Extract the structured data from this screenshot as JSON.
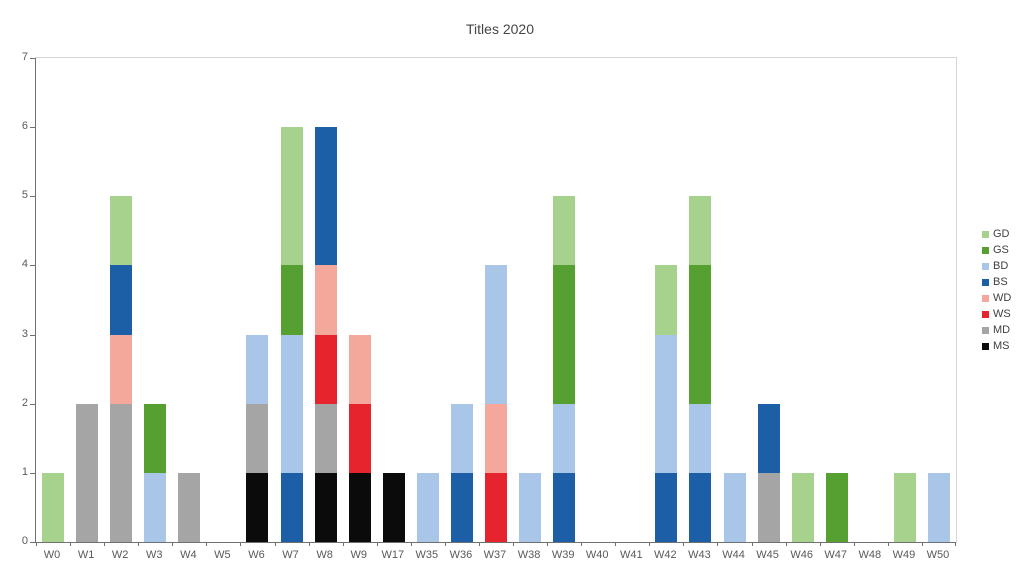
{
  "chart_data": {
    "type": "bar",
    "subtype": "stacked-vertical",
    "title": "Titles 2020",
    "xlabel": "",
    "ylabel": "",
    "ylim": [
      0,
      7
    ],
    "y_ticks": [
      0,
      1,
      2,
      3,
      4,
      5,
      6,
      7
    ],
    "grid": false,
    "legend_position": "right",
    "categories": [
      "W0",
      "W1",
      "W2",
      "W3",
      "W4",
      "W5",
      "W6",
      "W7",
      "W8",
      "W9",
      "W17",
      "W35",
      "W36",
      "W37",
      "W38",
      "W39",
      "W40",
      "W41",
      "W42",
      "W43",
      "W44",
      "W45",
      "W46",
      "W47",
      "W48",
      "W49",
      "W50"
    ],
    "stack_order_bottom_to_top": [
      "MS",
      "MD",
      "WS",
      "WD",
      "BS",
      "BD",
      "GS",
      "GD"
    ],
    "series": [
      {
        "name": "MS",
        "color": "#0b0b0b",
        "values": [
          0,
          0,
          0,
          0,
          0,
          0,
          1,
          0,
          1,
          1,
          1,
          0,
          0,
          0,
          0,
          0,
          0,
          0,
          0,
          0,
          0,
          0,
          0,
          0,
          0,
          0,
          0
        ]
      },
      {
        "name": "MD",
        "color": "#a5a5a5",
        "values": [
          0,
          2,
          2,
          0,
          1,
          0,
          1,
          0,
          1,
          0,
          0,
          0,
          0,
          0,
          0,
          0,
          0,
          0,
          0,
          0,
          0,
          1,
          0,
          0,
          0,
          0,
          0
        ]
      },
      {
        "name": "WS",
        "color": "#e5242d",
        "values": [
          0,
          0,
          0,
          0,
          0,
          0,
          0,
          0,
          1,
          1,
          0,
          0,
          0,
          1,
          0,
          0,
          0,
          0,
          0,
          0,
          0,
          0,
          0,
          0,
          0,
          0,
          0
        ]
      },
      {
        "name": "WD",
        "color": "#f4a79b",
        "values": [
          0,
          0,
          1,
          0,
          0,
          0,
          0,
          0,
          1,
          1,
          0,
          0,
          0,
          1,
          0,
          0,
          0,
          0,
          0,
          0,
          0,
          0,
          0,
          0,
          0,
          0,
          0
        ]
      },
      {
        "name": "BS",
        "color": "#1c5fa6",
        "values": [
          0,
          0,
          1,
          0,
          0,
          0,
          0,
          1,
          2,
          0,
          0,
          0,
          1,
          0,
          0,
          1,
          0,
          0,
          1,
          1,
          0,
          1,
          0,
          0,
          0,
          0,
          0
        ]
      },
      {
        "name": "BD",
        "color": "#a9c5e8",
        "values": [
          0,
          0,
          0,
          1,
          0,
          0,
          1,
          2,
          0,
          0,
          0,
          1,
          1,
          2,
          1,
          1,
          0,
          0,
          2,
          1,
          1,
          0,
          0,
          0,
          0,
          0,
          1
        ]
      },
      {
        "name": "GS",
        "color": "#55a030",
        "values": [
          0,
          0,
          0,
          1,
          0,
          0,
          0,
          1,
          0,
          0,
          0,
          0,
          0,
          0,
          0,
          2,
          0,
          0,
          0,
          2,
          0,
          0,
          0,
          1,
          0,
          0,
          0
        ]
      },
      {
        "name": "GD",
        "color": "#a6d28e",
        "values": [
          1,
          0,
          1,
          0,
          0,
          0,
          0,
          2,
          0,
          0,
          0,
          0,
          0,
          0,
          0,
          1,
          0,
          0,
          1,
          1,
          0,
          0,
          1,
          0,
          0,
          1,
          0
        ]
      }
    ],
    "legend": [
      {
        "label": "GD",
        "color": "#a6d28e"
      },
      {
        "label": "GS",
        "color": "#55a030"
      },
      {
        "label": "BD",
        "color": "#a9c5e8"
      },
      {
        "label": "BS",
        "color": "#1c5fa6"
      },
      {
        "label": "WD",
        "color": "#f4a79b"
      },
      {
        "label": "WS",
        "color": "#e5242d"
      },
      {
        "label": "MD",
        "color": "#a5a5a5"
      },
      {
        "label": "MS",
        "color": "#0b0b0b"
      }
    ]
  }
}
